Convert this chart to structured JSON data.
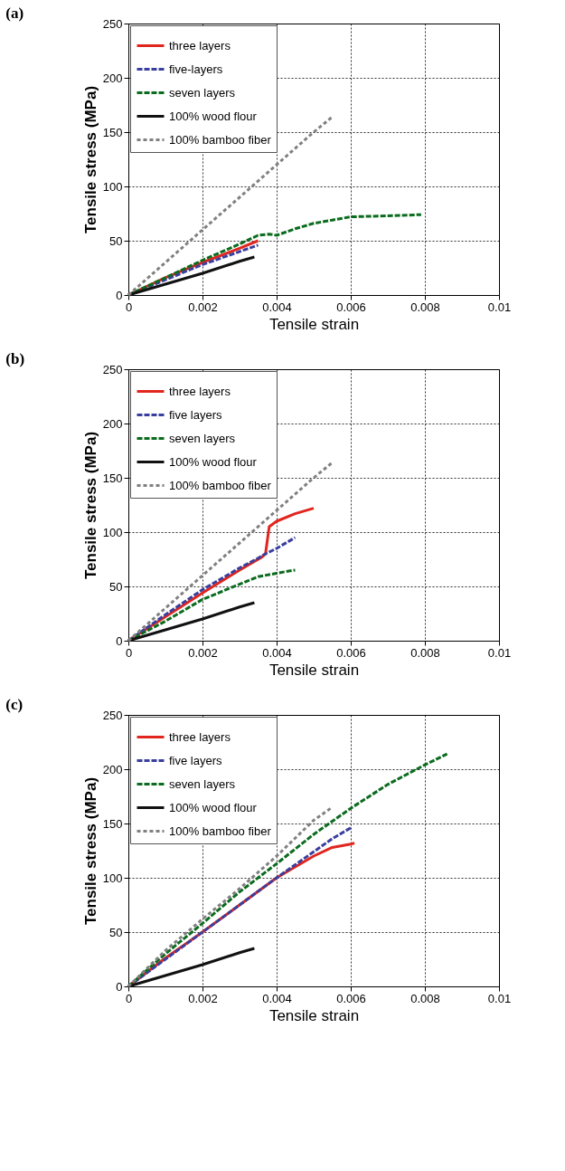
{
  "chart_data": [
    {
      "type": "line",
      "title": "(a)",
      "xlabel": "Tensile strain",
      "ylabel": "Tensile stress (MPa)",
      "xlim": [
        0,
        0.01
      ],
      "ylim": [
        0,
        250
      ],
      "xticks": [
        0,
        0.002,
        0.004,
        0.006,
        0.008,
        0.01
      ],
      "yticks": [
        0,
        50,
        100,
        150,
        200,
        250
      ],
      "grid": true,
      "legend": "top left",
      "series": [
        {
          "name": "three layers",
          "color": "#e0261f",
          "line_style": "solid",
          "x": [
            0,
            0.001,
            0.002,
            0.003,
            0.0035
          ],
          "values": [
            0,
            16,
            30,
            43,
            50
          ]
        },
        {
          "name": "five-layers",
          "color": "#3a3f9e",
          "line_style": "dashed",
          "x": [
            0,
            0.001,
            0.002,
            0.003,
            0.0035
          ],
          "values": [
            0,
            14,
            28,
            40,
            46
          ]
        },
        {
          "name": "seven layers",
          "color": "#0b6b1e",
          "line_style": "dashed",
          "x": [
            0,
            0.001,
            0.002,
            0.003,
            0.0035,
            0.0038,
            0.004,
            0.0045,
            0.005,
            0.0055,
            0.006,
            0.007,
            0.0079
          ],
          "values": [
            0,
            16,
            32,
            47,
            55,
            56,
            55,
            61,
            66,
            69,
            72,
            73,
            74
          ]
        },
        {
          "name": "100% wood flour",
          "color": "#111111",
          "line_style": "solid",
          "x": [
            0,
            0.001,
            0.002,
            0.003,
            0.0034
          ],
          "values": [
            0,
            10,
            20,
            31,
            35
          ]
        },
        {
          "name": "100% bamboo fiber",
          "color": "#808080",
          "line_style": "dotted",
          "x": [
            0,
            0.001,
            0.002,
            0.003,
            0.004,
            0.005,
            0.0055
          ],
          "values": [
            0,
            30,
            60,
            90,
            120,
            150,
            164
          ]
        }
      ]
    },
    {
      "type": "line",
      "title": "(b)",
      "xlabel": "Tensile strain",
      "ylabel": "Tensile stress (MPa)",
      "xlim": [
        0,
        0.01
      ],
      "ylim": [
        0,
        250
      ],
      "xticks": [
        0,
        0.002,
        0.004,
        0.006,
        0.008,
        0.01
      ],
      "yticks": [
        0,
        50,
        100,
        150,
        200,
        250
      ],
      "grid": true,
      "legend": "top left",
      "series": [
        {
          "name": "three layers",
          "color": "#e0261f",
          "line_style": "solid",
          "x": [
            0,
            0.001,
            0.002,
            0.003,
            0.0036,
            0.0037,
            0.0038,
            0.004,
            0.0045,
            0.005
          ],
          "values": [
            0,
            22,
            44,
            65,
            77,
            80,
            105,
            110,
            117,
            122
          ]
        },
        {
          "name": "five layers",
          "color": "#3a3f9e",
          "line_style": "dashed",
          "x": [
            0,
            0.001,
            0.002,
            0.003,
            0.0035,
            0.0037,
            0.004,
            0.0045
          ],
          "values": [
            0,
            24,
            47,
            67,
            76,
            80,
            85,
            95
          ]
        },
        {
          "name": "seven layers",
          "color": "#0b6b1e",
          "line_style": "dashed",
          "x": [
            0,
            0.001,
            0.002,
            0.003,
            0.0035,
            0.004,
            0.0043,
            0.0045
          ],
          "values": [
            0,
            18,
            38,
            52,
            59,
            62,
            64,
            65
          ]
        },
        {
          "name": "100% wood flour",
          "color": "#111111",
          "line_style": "solid",
          "x": [
            0,
            0.001,
            0.002,
            0.003,
            0.0034
          ],
          "values": [
            0,
            10,
            20,
            31,
            35
          ]
        },
        {
          "name": "100% bamboo fiber",
          "color": "#808080",
          "line_style": "dotted",
          "x": [
            0,
            0.001,
            0.002,
            0.003,
            0.004,
            0.005,
            0.0055
          ],
          "values": [
            0,
            30,
            60,
            90,
            120,
            150,
            164
          ]
        }
      ]
    },
    {
      "type": "line",
      "title": "(c)",
      "xlabel": "Tensile strain",
      "ylabel": "Tensile stress (MPa)",
      "xlim": [
        0,
        0.01
      ],
      "ylim": [
        0,
        250
      ],
      "xticks": [
        0,
        0.002,
        0.004,
        0.006,
        0.008,
        0.01
      ],
      "yticks": [
        0,
        50,
        100,
        150,
        200,
        250
      ],
      "grid": true,
      "legend": "top left",
      "series": [
        {
          "name": "three layers",
          "color": "#e0261f",
          "line_style": "solid",
          "x": [
            0,
            0.001,
            0.002,
            0.003,
            0.004,
            0.005,
            0.0055,
            0.006,
            0.0061
          ],
          "values": [
            0,
            26,
            50,
            75,
            100,
            120,
            128,
            131,
            132
          ]
        },
        {
          "name": "five layers",
          "color": "#3a3f9e",
          "line_style": "dashed",
          "x": [
            0,
            0.001,
            0.002,
            0.003,
            0.004,
            0.005,
            0.0055,
            0.006
          ],
          "values": [
            0,
            25,
            50,
            75,
            100,
            124,
            136,
            146
          ]
        },
        {
          "name": "seven layers",
          "color": "#0b6b1e",
          "line_style": "dashed",
          "x": [
            0,
            0.001,
            0.002,
            0.003,
            0.004,
            0.005,
            0.006,
            0.007,
            0.008,
            0.0086
          ],
          "values": [
            0,
            30,
            58,
            87,
            113,
            140,
            164,
            186,
            204,
            214
          ]
        },
        {
          "name": "100% wood flour",
          "color": "#111111",
          "line_style": "solid",
          "x": [
            0,
            0.001,
            0.002,
            0.003,
            0.0034
          ],
          "values": [
            0,
            10,
            20,
            31,
            35
          ]
        },
        {
          "name": "100% bamboo fiber",
          "color": "#808080",
          "line_style": "dotted",
          "x": [
            0,
            0.001,
            0.002,
            0.003,
            0.004,
            0.005,
            0.0055
          ],
          "values": [
            0,
            33,
            62,
            90,
            120,
            153,
            165
          ]
        }
      ]
    }
  ]
}
